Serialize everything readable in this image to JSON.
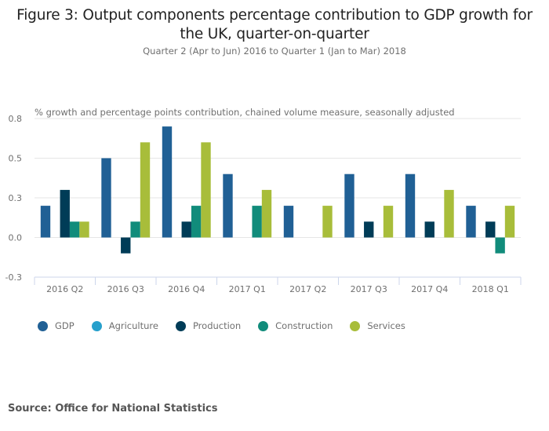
{
  "chart_data": {
    "type": "bar",
    "title": "Figure 3: Output components percentage contribution to GDP growth for the UK, quarter-on-quarter",
    "title_line1": "Figure 3: Output components percentage contribution to GDP growth for",
    "title_line2": "the UK, quarter-on-quarter",
    "subtitle": "Quarter 2 (Apr to Jun) 2016 to Quarter 1 (Jan to Mar) 2018",
    "ylabel": "% growth and percentage points contribution, chained volume measure, seasonally adjusted",
    "xlabel": "",
    "ylim": [
      -0.25,
      0.75
    ],
    "yticks": [
      -0.25,
      0,
      0.25,
      0.5,
      0.75
    ],
    "ytick_labels": [
      "-0.3",
      "0.0",
      "0.3",
      "0.5",
      "0.8"
    ],
    "grid": true,
    "legend_position": "bottom-left",
    "categories": [
      "2016 Q2",
      "2016 Q3",
      "2016 Q4",
      "2017 Q1",
      "2017 Q2",
      "2017 Q3",
      "2017 Q4",
      "2018 Q1"
    ],
    "series": [
      {
        "name": "GDP",
        "color": "#206095",
        "values": [
          0.2,
          0.5,
          0.7,
          0.4,
          0.2,
          0.4,
          0.4,
          0.2
        ]
      },
      {
        "name": "Agriculture",
        "color": "#27a0cc",
        "values": [
          0.0,
          0.0,
          0.0,
          0.0,
          0.0,
          0.0,
          0.0,
          0.0
        ]
      },
      {
        "name": "Production",
        "color": "#003c57",
        "values": [
          0.3,
          -0.1,
          0.1,
          0.0,
          0.0,
          0.1,
          0.1,
          0.1
        ]
      },
      {
        "name": "Construction",
        "color": "#118c7b",
        "values": [
          0.1,
          0.1,
          0.2,
          0.2,
          0.0,
          0.0,
          0.0,
          -0.1
        ]
      },
      {
        "name": "Services",
        "color": "#a8bd3a",
        "values": [
          0.1,
          0.6,
          0.6,
          0.3,
          0.2,
          0.2,
          0.3,
          0.2
        ]
      }
    ]
  },
  "source": "Source: Office for National Statistics"
}
